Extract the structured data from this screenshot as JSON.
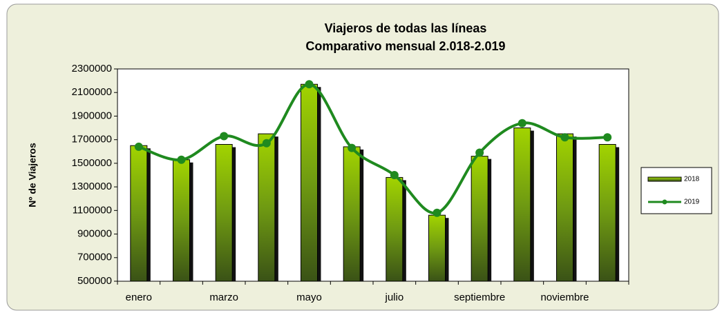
{
  "chart_data": {
    "type": "bar",
    "title": "Viajeros de todas las líneas",
    "subtitle": "Comparativo mensual 2.018-2.019",
    "y_label": "Nº de Viajeros",
    "categories": [
      "enero",
      null,
      "marzo",
      null,
      "mayo",
      null,
      "julio",
      null,
      "septiembre",
      null,
      "noviembre",
      null
    ],
    "series": [
      {
        "name": "2018",
        "type": "bar",
        "color": "#8fc400",
        "values": [
          1650000,
          1530000,
          1660000,
          1750000,
          2170000,
          1640000,
          1380000,
          1060000,
          1560000,
          1800000,
          1750000,
          1660000
        ]
      },
      {
        "name": "2019",
        "type": "line",
        "color": "#1f8a1f",
        "values": [
          1640000,
          1530000,
          1730000,
          1670000,
          2170000,
          1630000,
          1400000,
          1080000,
          1590000,
          1840000,
          1720000,
          1720000
        ]
      }
    ],
    "ylim": [
      500000,
      2300000
    ],
    "yticks": [
      500000,
      700000,
      900000,
      1100000,
      1300000,
      1500000,
      1700000,
      1900000,
      2100000,
      2300000
    ],
    "legend": "right"
  }
}
